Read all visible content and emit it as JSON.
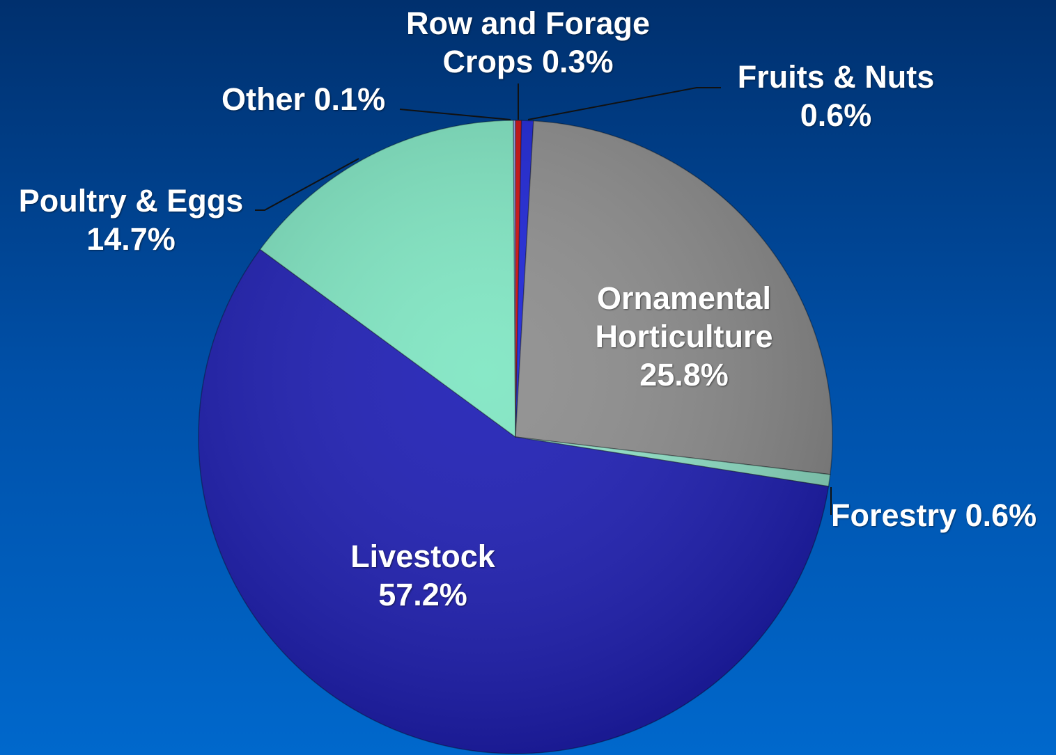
{
  "chart_data": {
    "type": "pie",
    "categories": [
      "Row and Forage Crops",
      "Fruits & Nuts",
      "Ornamental Horticulture",
      "Forestry",
      "Livestock",
      "Poultry & Eggs",
      "Other"
    ],
    "values": [
      0.3,
      0.6,
      25.8,
      0.6,
      57.2,
      14.7,
      0.1
    ],
    "value_labels": [
      "0.3%",
      "0.6%",
      "25.8%",
      "0.6%",
      "57.2%",
      "14.7%",
      "0.1%"
    ],
    "colors": [
      "#cc0a0a",
      "#1a22d8",
      "#8c8c8c",
      "#8fe3c8",
      "#1c1cb4",
      "#7ee6c2",
      "#9a9cf0"
    ]
  }
}
